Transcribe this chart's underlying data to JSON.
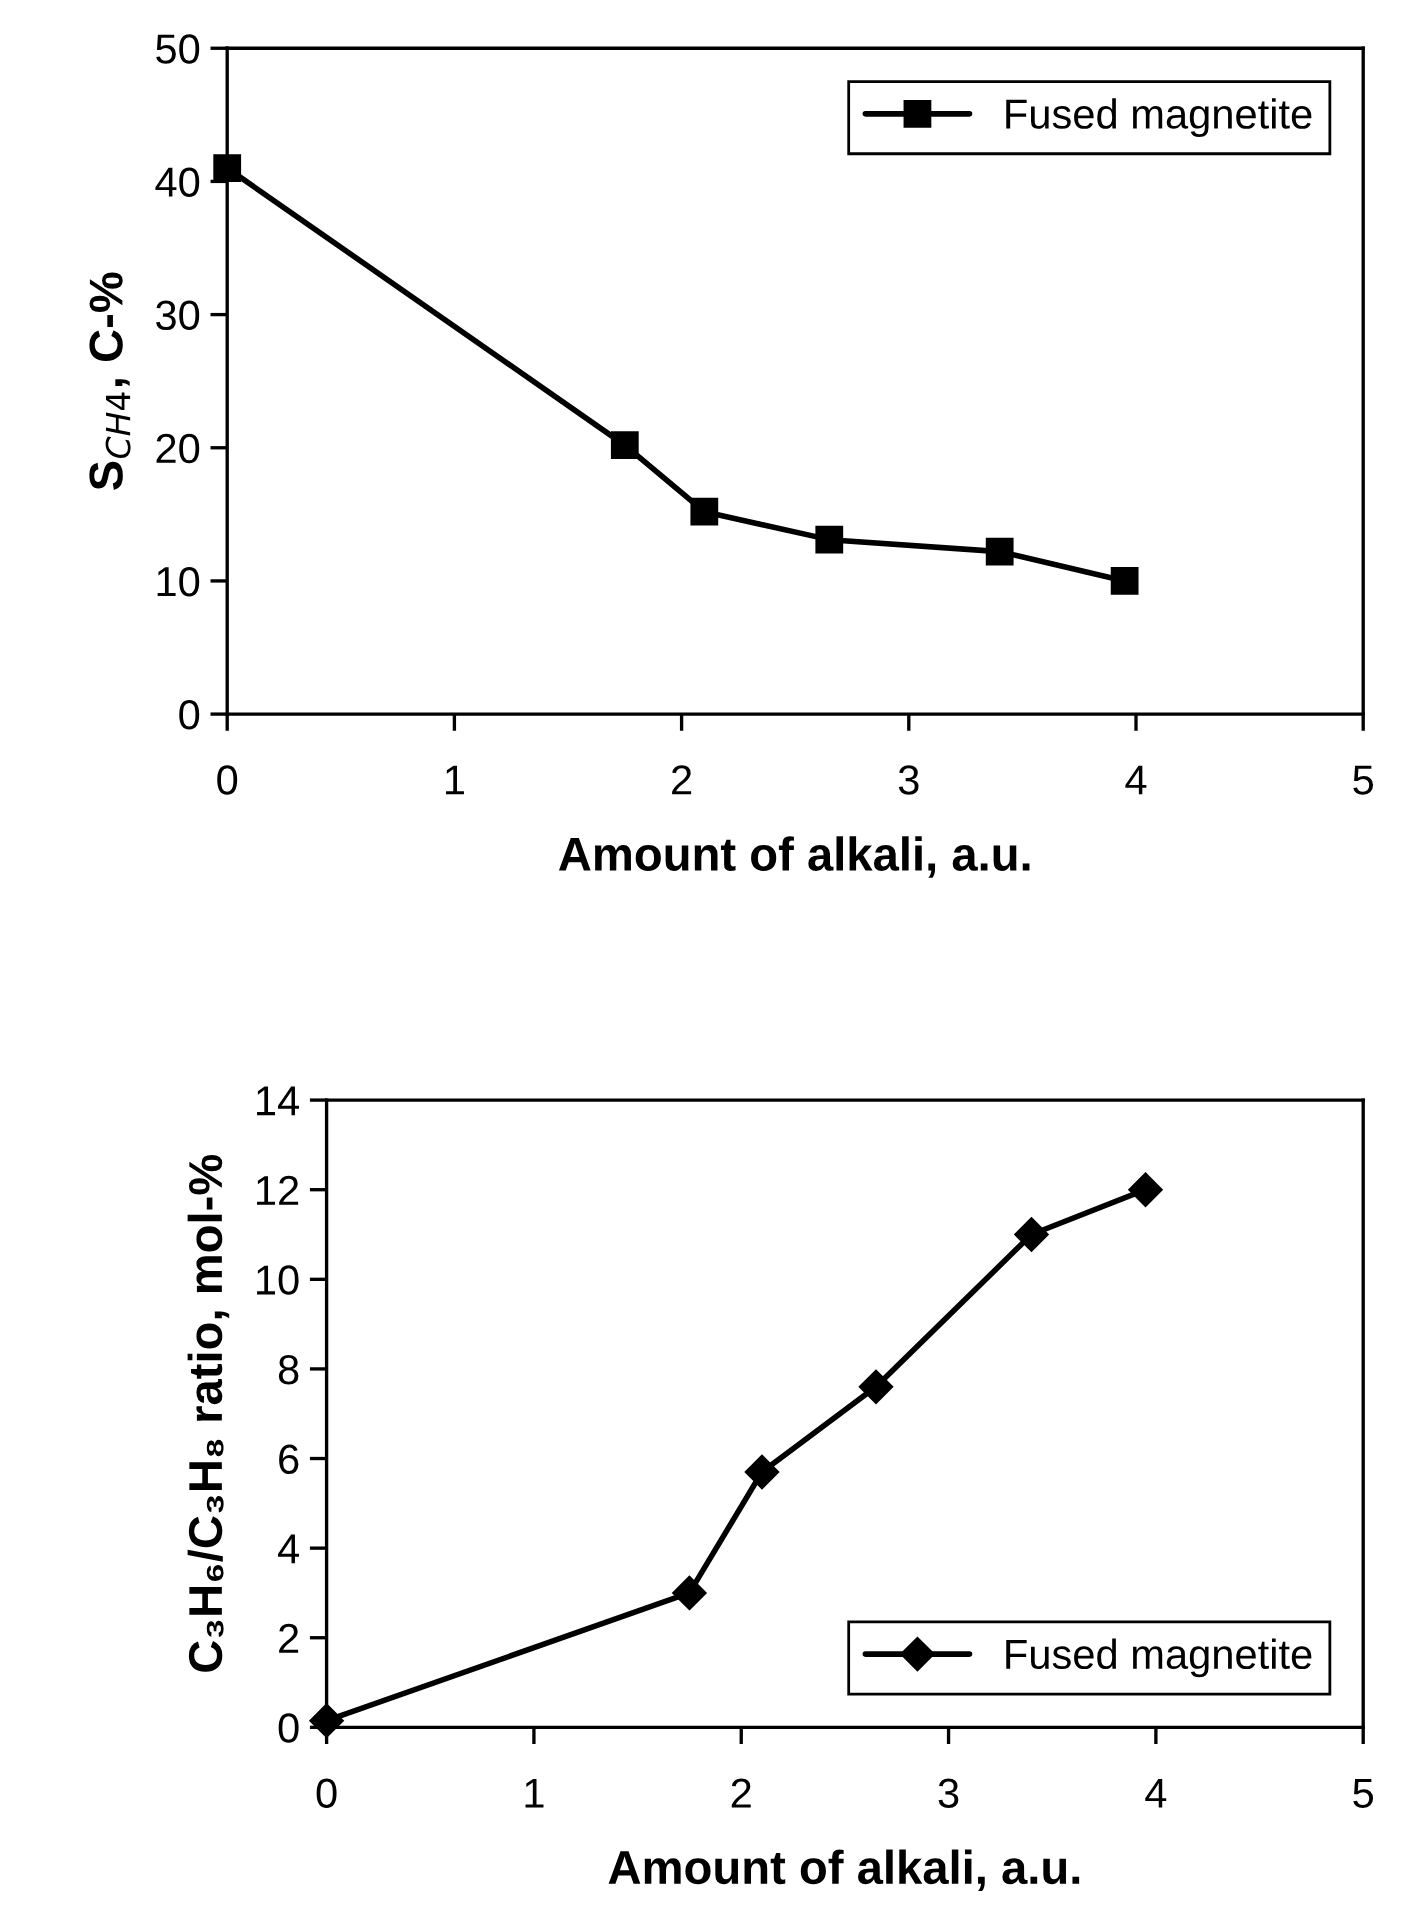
{
  "chart_data": [
    {
      "type": "line",
      "xlabel": "Amount of alkali, a.u.",
      "ylabel": "S$_{CH4}$, C-%",
      "xlim": [
        0,
        5
      ],
      "xticks": [
        0,
        1,
        2,
        3,
        4,
        5
      ],
      "ylim": [
        0,
        50
      ],
      "yticks": [
        0,
        10,
        20,
        30,
        40,
        50
      ],
      "grid": false,
      "legend": "top right",
      "marker": "square",
      "line_style": "solid",
      "x": [
        0,
        1.75,
        2.1,
        2.65,
        3.4,
        3.95
      ],
      "series": [
        {
          "name": "Fused magnetite",
          "color": "#000000",
          "values": [
            41,
            20.2,
            15.2,
            13.1,
            12.2,
            10
          ]
        }
      ]
    },
    {
      "type": "line",
      "xlabel": "Amount of alkali, a.u.",
      "ylabel": "C₃H₆/C₃H₈ ratio, mol-%",
      "xlim": [
        0,
        5
      ],
      "xticks": [
        0,
        1,
        2,
        3,
        4,
        5
      ],
      "ylim": [
        0,
        14
      ],
      "yticks": [
        0,
        2,
        4,
        6,
        8,
        10,
        12,
        14
      ],
      "grid": false,
      "legend": "bottom right",
      "marker": "diamond",
      "line_style": "solid",
      "x": [
        0,
        1.75,
        2.1,
        2.65,
        3.4,
        3.95
      ],
      "series": [
        {
          "name": "Fused magnetite",
          "color": "#000000",
          "values": [
            0.15,
            3,
            5.7,
            7.6,
            11,
            12
          ]
        }
      ]
    }
  ]
}
